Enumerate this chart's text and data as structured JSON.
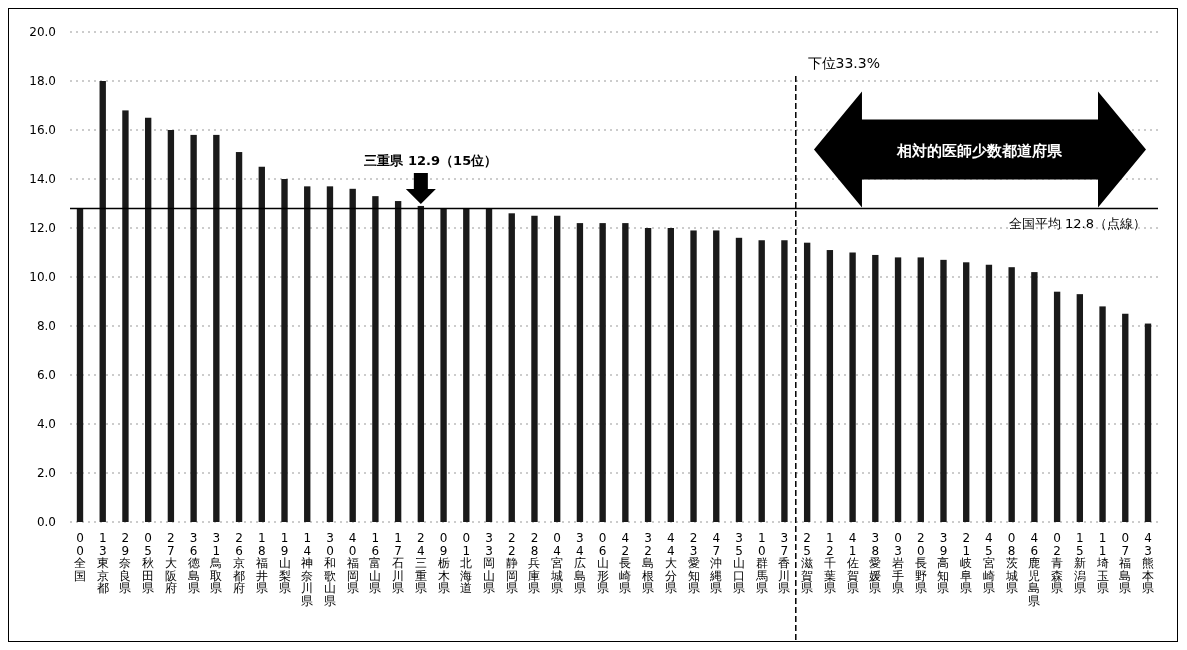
{
  "chart_data": {
    "type": "bar",
    "categories": [
      "00全国",
      "13東京都",
      "29奈良県",
      "05秋田県",
      "27大阪府",
      "36徳島県",
      "31鳥取県",
      "26京都府",
      "18福井県",
      "19山梨県",
      "14神奈川県",
      "30和歌山県",
      "40福岡県",
      "16富山県",
      "17石川県",
      "24三重県",
      "09栃木県",
      "01北海道",
      "33岡山県",
      "22静岡県",
      "28兵庫県",
      "04宮城県",
      "34広島県",
      "06山形県",
      "42長崎県",
      "32島根県",
      "44大分県",
      "23愛知県",
      "47沖縄県",
      "35山口県",
      "10群馬県",
      "37香川県",
      "25滋賀県",
      "12千葉県",
      "41佐賀県",
      "38愛媛県",
      "03岩手県",
      "20長野県",
      "39高知県",
      "21岐阜県",
      "45宮崎県",
      "08茨城県",
      "46鹿児島県",
      "02青森県",
      "15新潟県",
      "11埼玉県",
      "07福島県",
      "43熊本県"
    ],
    "values": [
      12.8,
      18.0,
      16.8,
      16.5,
      16.0,
      15.8,
      15.8,
      15.1,
      14.5,
      14.0,
      13.7,
      13.7,
      13.6,
      13.3,
      13.1,
      12.9,
      12.8,
      12.8,
      12.8,
      12.6,
      12.5,
      12.5,
      12.2,
      12.2,
      12.2,
      12.0,
      12.0,
      11.9,
      11.9,
      11.6,
      11.5,
      11.5,
      11.4,
      11.1,
      11.0,
      10.9,
      10.8,
      10.8,
      10.7,
      10.6,
      10.5,
      10.4,
      10.2,
      9.4,
      9.3,
      8.8,
      8.5,
      8.1
    ],
    "color": "#1a1a1a",
    "ylim": [
      0,
      20
    ],
    "yticks": [
      {
        "value": 0,
        "label": "0.0"
      },
      {
        "value": 2,
        "label": "2.0"
      },
      {
        "value": 4,
        "label": "4.0"
      },
      {
        "value": 6,
        "label": "6.0"
      },
      {
        "value": 8,
        "label": "8.0"
      },
      {
        "value": 10,
        "label": "10.0"
      },
      {
        "value": 12,
        "label": "12.0"
      },
      {
        "value": 14,
        "label": "14.0"
      },
      {
        "value": 16,
        "label": "16.0"
      },
      {
        "value": 18,
        "label": "18.0"
      },
      {
        "value": 20,
        "label": "20.0"
      }
    ],
    "grid": "y",
    "ref_lines": [
      {
        "axis": "y",
        "value": 12.8,
        "label": "全国平均 12.8（点線）",
        "color": "#000000",
        "line_style": "solid"
      },
      {
        "axis": "x",
        "value": "25滋賀県",
        "label": "下位33.3%",
        "color": "#000000",
        "line_style": "dashed"
      }
    ],
    "annotations": [
      {
        "text": "三重県 12.9（15位）",
        "x": "24三重県",
        "y": 12.9
      },
      "相対的医師少数都道府県"
    ]
  }
}
